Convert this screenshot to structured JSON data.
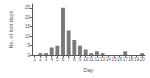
{
  "chart_data": {
    "type": "bar",
    "x": [
      1,
      2,
      3,
      4,
      5,
      6,
      7,
      8,
      9,
      10,
      11,
      12,
      13,
      14,
      15,
      16,
      17,
      18,
      19,
      20
    ],
    "values": [
      0,
      1,
      1,
      4,
      5,
      25,
      13,
      8,
      5,
      3,
      1,
      2,
      1,
      0,
      0,
      0,
      2,
      0,
      0,
      1
    ],
    "color": "#7a7a7a",
    "xlabel": "Day",
    "ylabel": "No. of lost days",
    "xlim": [
      0.5,
      20.5
    ],
    "xticks": [
      1,
      2,
      3,
      4,
      5,
      6,
      7,
      8,
      9,
      10,
      11,
      12,
      13,
      14,
      15,
      16,
      17,
      18,
      19,
      20
    ],
    "ylim": [
      0,
      27
    ],
    "yticks": [
      0,
      5,
      10,
      15,
      20,
      25
    ],
    "grid": false
  }
}
